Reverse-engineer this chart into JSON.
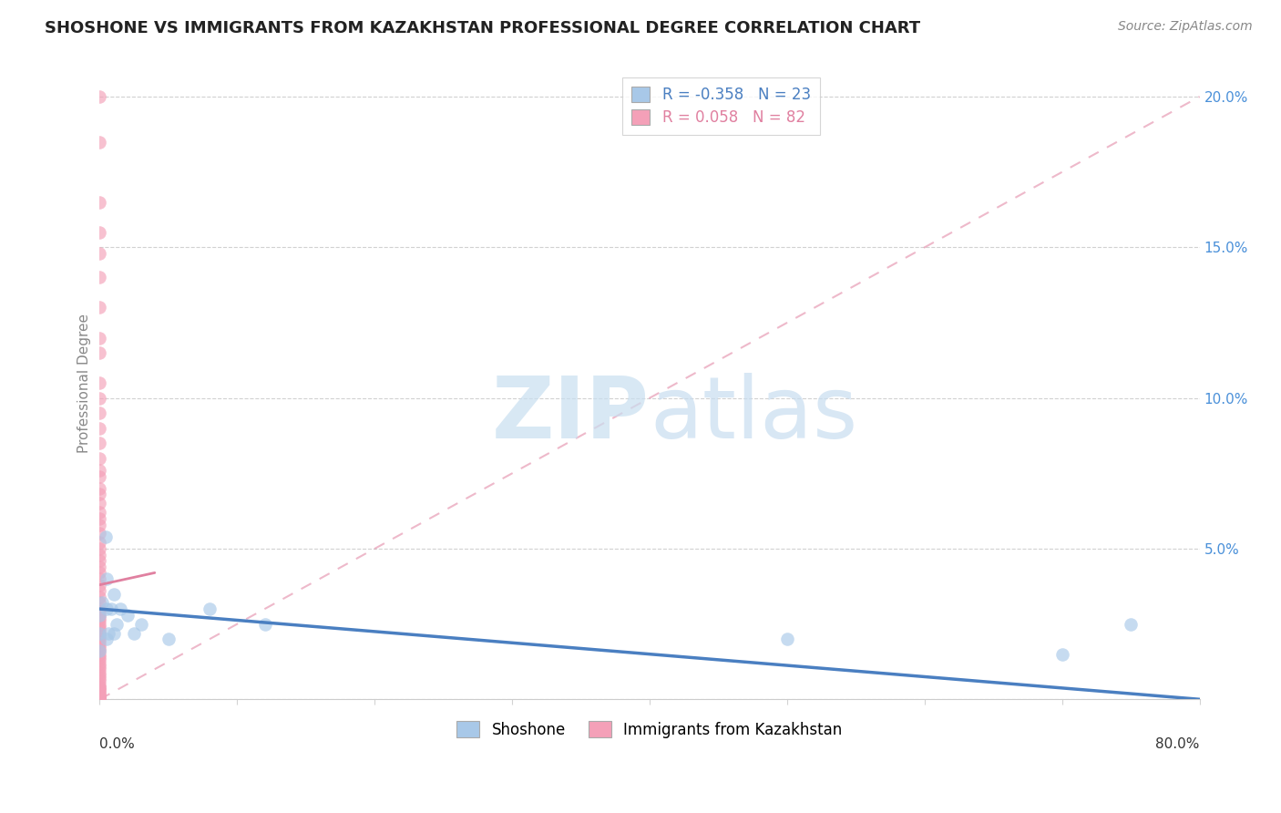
{
  "title": "SHOSHONE VS IMMIGRANTS FROM KAZAKHSTAN PROFESSIONAL DEGREE CORRELATION CHART",
  "source": "Source: ZipAtlas.com",
  "ylabel": "Professional Degree",
  "legend_shoshone": "Shoshone",
  "legend_kazakhstan": "Immigrants from Kazakhstan",
  "r_shoshone": -0.358,
  "n_shoshone": 23,
  "r_kazakhstan": 0.058,
  "n_kazakhstan": 82,
  "color_shoshone": "#a8c8e8",
  "color_kazakhstan": "#f4a0b8",
  "line_shoshone": "#4a7fc1",
  "line_kazakhstan": "#e080a0",
  "xlim": [
    0,
    0.8
  ],
  "ylim": [
    0,
    0.21
  ],
  "shoshone_x": [
    0.0,
    0.0,
    0.0,
    0.002,
    0.004,
    0.005,
    0.005,
    0.006,
    0.008,
    0.01,
    0.01,
    0.012,
    0.015,
    0.02,
    0.025,
    0.03,
    0.05,
    0.08,
    0.12,
    0.5,
    0.7,
    0.75,
    0.005
  ],
  "shoshone_y": [
    0.028,
    0.022,
    0.016,
    0.032,
    0.054,
    0.04,
    0.03,
    0.022,
    0.03,
    0.035,
    0.022,
    0.025,
    0.03,
    0.028,
    0.022,
    0.025,
    0.02,
    0.03,
    0.025,
    0.02,
    0.015,
    0.025,
    0.02
  ],
  "kazakhstan_x": [
    0.0,
    0.0,
    0.0,
    0.0,
    0.0,
    0.0,
    0.0,
    0.0,
    0.0,
    0.0,
    0.0,
    0.0,
    0.0,
    0.0,
    0.0,
    0.0,
    0.0,
    0.0,
    0.0,
    0.0,
    0.0,
    0.0,
    0.0,
    0.0,
    0.0,
    0.0,
    0.0,
    0.0,
    0.0,
    0.0,
    0.0,
    0.0,
    0.0,
    0.0,
    0.0,
    0.0,
    0.0,
    0.0,
    0.0,
    0.0,
    0.0,
    0.0,
    0.0,
    0.0,
    0.0,
    0.0,
    0.0,
    0.0,
    0.0,
    0.0,
    0.0,
    0.0,
    0.0,
    0.0,
    0.0,
    0.0,
    0.0,
    0.0,
    0.0,
    0.0,
    0.0,
    0.0,
    0.0,
    0.0,
    0.0,
    0.0,
    0.0,
    0.0,
    0.0,
    0.0,
    0.0,
    0.0,
    0.0,
    0.0,
    0.0,
    0.0,
    0.0,
    0.0,
    0.0,
    0.0,
    0.0,
    0.0
  ],
  "kazakhstan_y": [
    0.2,
    0.185,
    0.165,
    0.155,
    0.148,
    0.14,
    0.13,
    0.12,
    0.115,
    0.105,
    0.1,
    0.095,
    0.09,
    0.085,
    0.08,
    0.076,
    0.074,
    0.07,
    0.068,
    0.065,
    0.062,
    0.06,
    0.058,
    0.055,
    0.052,
    0.05,
    0.048,
    0.046,
    0.044,
    0.042,
    0.04,
    0.038,
    0.036,
    0.034,
    0.032,
    0.03,
    0.029,
    0.028,
    0.027,
    0.026,
    0.025,
    0.024,
    0.023,
    0.022,
    0.021,
    0.02,
    0.019,
    0.018,
    0.017,
    0.016,
    0.015,
    0.014,
    0.013,
    0.012,
    0.011,
    0.01,
    0.009,
    0.008,
    0.007,
    0.006,
    0.005,
    0.004,
    0.004,
    0.003,
    0.003,
    0.002,
    0.002,
    0.001,
    0.001,
    0.001,
    0.0,
    0.0,
    0.0,
    0.0,
    0.0,
    0.0,
    0.0,
    0.0,
    0.0,
    0.0,
    0.0,
    0.0
  ],
  "kaz_line_x0": 0.0,
  "kaz_line_y0": 0.0,
  "kaz_line_x1": 0.8,
  "kaz_line_y1": 0.2,
  "sho_line_x0": 0.0,
  "sho_line_y0": 0.03,
  "sho_line_x1": 0.8,
  "sho_line_y1": 0.0
}
